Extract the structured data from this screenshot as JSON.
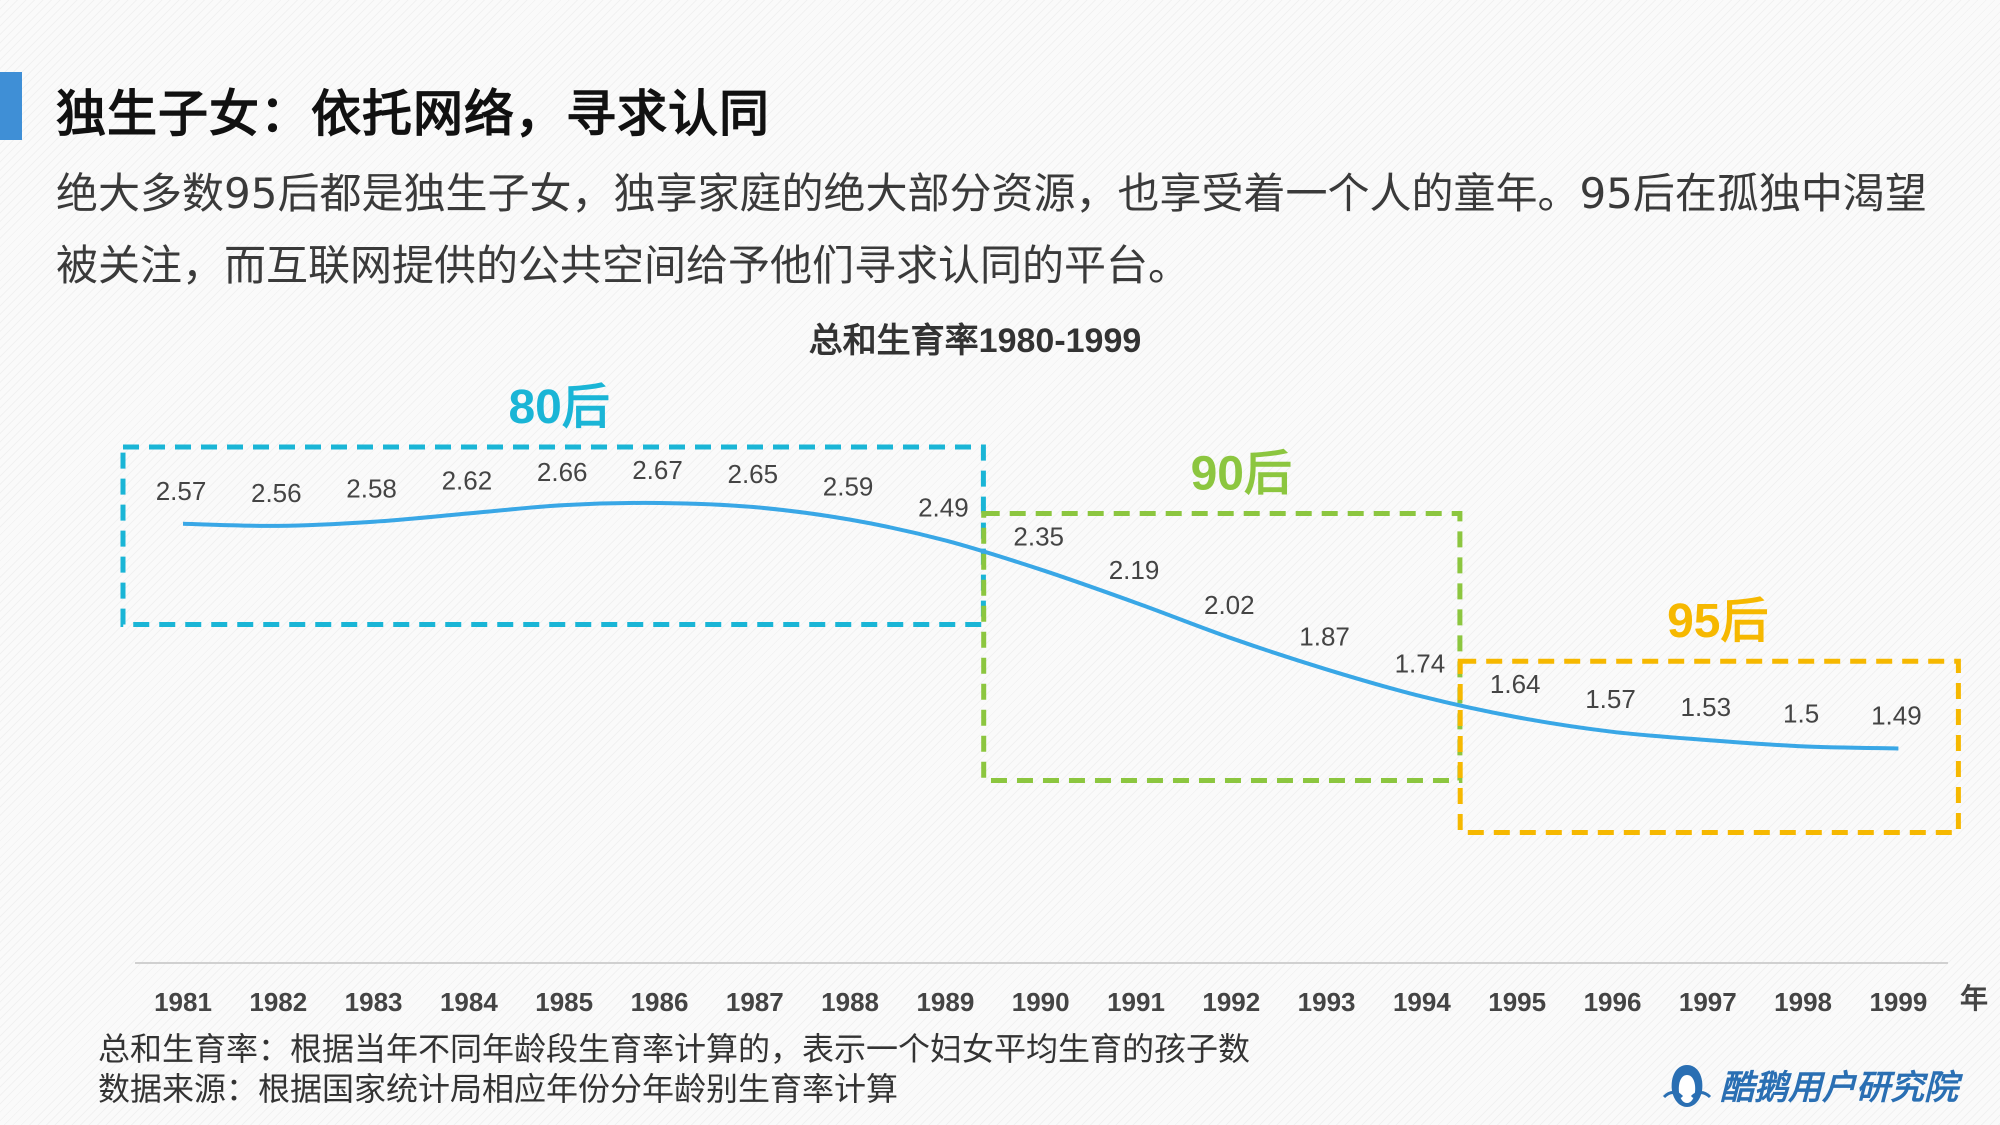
{
  "slide": {
    "headline": "独生子女：依托网络，寻求认同",
    "intro": "绝大多数95后都是独生子女，独享家庭的绝大部分资源，也享受着一个人的童年。95后在孤独中渴望被关注，而互联网提供的公共空间给予他们寻求认同的平台。",
    "notes": [
      "总和生育率：根据当年不同年龄段生育率计算的，表示一个妇女平均生育的孩子数",
      "数据来源：根据国家统计局相应年份分年龄别生育率计算"
    ],
    "brand": "酷鹅用户研究院",
    "accent_color": "#3f8fd6"
  },
  "chart_data": {
    "type": "line",
    "title": "总和生育率1980-1999",
    "xlabel": "年",
    "ylabel": "",
    "categories": [
      "1981",
      "1982",
      "1983",
      "1984",
      "1985",
      "1986",
      "1987",
      "1988",
      "1989",
      "1990",
      "1991",
      "1992",
      "1993",
      "1994",
      "1995",
      "1996",
      "1997",
      "1998",
      "1999"
    ],
    "series": [
      {
        "values": [
          2.57,
          2.56,
          2.58,
          2.62,
          2.66,
          2.67,
          2.65,
          2.59,
          2.49,
          2.35,
          2.19,
          2.02,
          1.87,
          1.74,
          1.64,
          1.57,
          1.53,
          1.5,
          1.49
        ],
        "labels": [
          "2.57",
          "2.56",
          "2.58",
          "2.62",
          "2.66",
          "2.67",
          "2.65",
          "2.59",
          "2.49",
          "2.35",
          "2.19",
          "2.02",
          "1.87",
          "1.74",
          "1.64",
          "1.57",
          "1.53",
          "1.5",
          "1.49"
        ],
        "color": "#39a7e6"
      }
    ],
    "ylim": [
      1.0,
      3.0
    ],
    "grid": false,
    "groups": [
      {
        "label": "80后",
        "from": "1981",
        "to": "1989",
        "color": "#1ab5d6"
      },
      {
        "label": "90后",
        "from": "1990",
        "to": "1994",
        "color": "#8cc63f"
      },
      {
        "label": "95后",
        "from": "1995",
        "to": "1999",
        "color": "#f6b800"
      }
    ]
  }
}
